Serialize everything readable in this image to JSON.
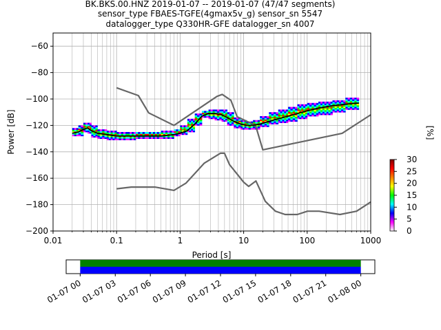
{
  "chart_data": {
    "type": "line",
    "title_lines": [
      "BK.BKS.00.HNZ   2019-01-07 -- 2019-01-07  (47/47 segments)",
      "sensor_type FBAES-TGFE(4gmax5v_g) sensor_sn 5547",
      "datalogger_type Q330HR-GFE datalogger_sn 4007"
    ],
    "xlabel": "Period [s]",
    "ylabel": "Power [dB]",
    "x_scale": "log",
    "xlim": [
      0.01,
      1000
    ],
    "ylim": [
      -200,
      -50
    ],
    "x_ticks": [
      {
        "v": 0.01,
        "label": "0.01"
      },
      {
        "v": 0.1,
        "label": "0.1"
      },
      {
        "v": 1,
        "label": "1"
      },
      {
        "v": 10,
        "label": "10"
      },
      {
        "v": 100,
        "label": "100"
      },
      {
        "v": 1000,
        "label": "1000"
      }
    ],
    "y_ticks": [
      {
        "v": -60,
        "label": "−60"
      },
      {
        "v": -80,
        "label": "−80"
      },
      {
        "v": -100,
        "label": "−100"
      },
      {
        "v": -120,
        "label": "−120"
      },
      {
        "v": -140,
        "label": "−140"
      },
      {
        "v": -160,
        "label": "−160"
      },
      {
        "v": -180,
        "label": "−180"
      },
      {
        "v": -200,
        "label": "−200"
      }
    ],
    "grid": true,
    "noise_models": {
      "color": "#666666",
      "high": {
        "x": [
          0.1,
          0.22,
          0.32,
          0.8,
          3.8,
          4.6,
          6.3,
          7.9,
          15.4,
          20,
          354.8,
          1000
        ],
        "y": [
          -91.5,
          -97.4,
          -110.5,
          -120,
          -98,
          -96.5,
          -101,
          -113.5,
          -120,
          -138.5,
          -126,
          -112
        ]
      },
      "low": {
        "x": [
          0.1,
          0.17,
          0.4,
          0.8,
          1.24,
          2.4,
          4.3,
          5.0,
          6.0,
          10,
          12,
          15.6,
          21.9,
          31.6,
          45,
          70,
          101,
          154,
          328,
          600,
          1000
        ],
        "y": [
          -168,
          -166.7,
          -166.7,
          -169.2,
          -163.7,
          -148.6,
          -141.1,
          -141.1,
          -149.7,
          -163,
          -166.2,
          -162.1,
          -177.5,
          -185,
          -187.5,
          -187.5,
          -185,
          -185,
          -187.5,
          -185,
          -178
        ]
      }
    },
    "ppsd_band": {
      "x": [
        0.02,
        0.025,
        0.03,
        0.035,
        0.04,
        0.05,
        0.07,
        0.1,
        0.15,
        0.2,
        0.3,
        0.5,
        0.8,
        1.0,
        1.3,
        1.7,
        2.2,
        2.8,
        3.5,
        4.5,
        5.5,
        7,
        9,
        11,
        14,
        18,
        25,
        35,
        50,
        70,
        100,
        150,
        250,
        400,
        650
      ],
      "y_min": [
        -127,
        -128,
        -125,
        -123,
        -126,
        -129,
        -130,
        -131,
        -131,
        -130,
        -130,
        -130,
        -128,
        -127,
        -125,
        -120,
        -114,
        -114,
        -115,
        -116,
        -117,
        -120,
        -122,
        -123,
        -123,
        -121,
        -119,
        -118,
        -117,
        -115,
        -113,
        -112,
        -110,
        -108,
        -106
      ],
      "y_max": [
        -124,
        -122,
        -120,
        -118,
        -120,
        -123,
        -124,
        -125,
        -125,
        -125,
        -125,
        -126,
        -124,
        -123,
        -120,
        -115,
        -111,
        -109,
        -108,
        -108,
        -110,
        -114,
        -116,
        -117,
        -118,
        -116,
        -113,
        -110,
        -108,
        -106,
        -104,
        -103,
        -102,
        -101,
        -99
      ]
    },
    "mean_line": {
      "color": "#000000",
      "x": [
        0.02,
        0.025,
        0.03,
        0.035,
        0.04,
        0.05,
        0.07,
        0.1,
        0.15,
        0.2,
        0.3,
        0.5,
        0.8,
        1.0,
        1.3,
        1.7,
        2.2,
        2.8,
        3.5,
        4.5,
        5.5,
        7,
        9,
        11,
        14,
        18,
        25,
        35,
        50,
        70,
        100,
        150,
        250,
        400,
        650
      ],
      "y": [
        -126,
        -125,
        -123,
        -122,
        -124,
        -126,
        -127,
        -128,
        -128,
        -128,
        -128,
        -128,
        -127,
        -126,
        -124,
        -119,
        -113,
        -111,
        -111,
        -112,
        -114,
        -117,
        -119,
        -120,
        -120,
        -119,
        -117,
        -115,
        -113,
        -111,
        -109,
        -107,
        -105,
        -104,
        -103
      ]
    },
    "colorbar": {
      "label": "[%]",
      "min": 0,
      "max": 30,
      "ticks": [
        {
          "v": 0,
          "label": "0"
        },
        {
          "v": 5,
          "label": "5"
        },
        {
          "v": 10,
          "label": "10"
        },
        {
          "v": 15,
          "label": "15"
        },
        {
          "v": 20,
          "label": "20"
        },
        {
          "v": 25,
          "label": "25"
        },
        {
          "v": 30,
          "label": "30"
        }
      ],
      "colors": [
        "#ffffff",
        "#ff00ff",
        "#0000ff",
        "#00ffff",
        "#00ff00",
        "#ffff00",
        "#ff8000",
        "#ff0000",
        "#800000"
      ]
    },
    "coverage": {
      "tick_labels": [
        "01-07 00",
        "01-07 03",
        "01-07 06",
        "01-07 09",
        "01-07 12",
        "01-07 15",
        "01-07 18",
        "01-07 21",
        "01-08 00"
      ],
      "tick_hours": [
        0,
        3,
        6,
        9,
        12,
        15,
        18,
        21,
        24
      ],
      "range_hours": [
        -1.2,
        25.2
      ],
      "data_hours": [
        0,
        24
      ],
      "upper_color": "#008000",
      "lower_color": "#0000ff"
    }
  }
}
